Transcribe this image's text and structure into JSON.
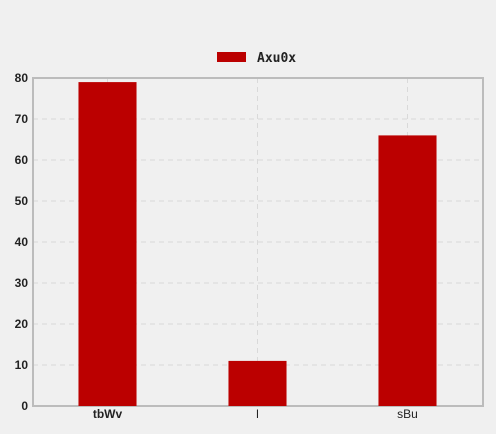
{
  "chart_data": {
    "type": "bar",
    "categories": [
      "tbWv",
      "l",
      "sBu"
    ],
    "series": [
      {
        "name": "Axu0x",
        "values": [
          79,
          11,
          66
        ],
        "color": "#bb0000"
      }
    ],
    "ylim": [
      0,
      80
    ],
    "yticks": [
      0,
      10,
      20,
      30,
      40,
      50,
      60,
      70,
      80
    ],
    "grid": true,
    "legend": "top-center",
    "title": "",
    "xlabel": "",
    "ylabel": ""
  }
}
